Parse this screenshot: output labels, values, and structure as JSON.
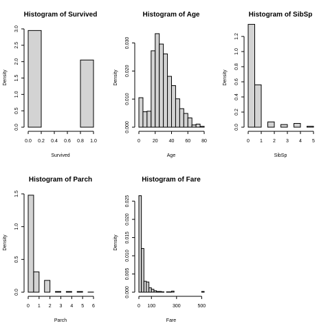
{
  "chart_data": [
    {
      "type": "bar",
      "title": "Histogram of Survived",
      "xlabel": "Survived",
      "ylabel": "Density",
      "bin_edges": [
        0,
        0.2,
        0.4,
        0.6,
        0.8,
        1.0
      ],
      "values": [
        2.95,
        0,
        0,
        0,
        2.05
      ],
      "xlim": [
        0,
        1.0
      ],
      "ylim": [
        0,
        3.0
      ],
      "xticks": [
        0,
        0.2,
        0.4,
        0.6,
        0.8,
        1.0
      ],
      "xtick_labels": [
        "0.0",
        "0.2",
        "0.4",
        "0.6",
        "0.8",
        "1.0"
      ],
      "yticks": [
        0,
        0.5,
        1.0,
        1.5,
        2.0,
        2.5,
        3.0
      ],
      "ytick_labels": [
        "0.0",
        "0.5",
        "1.0",
        "1.5",
        "2.0",
        "2.5",
        "3.0"
      ]
    },
    {
      "type": "bar",
      "title": "Histogram of Age",
      "xlabel": "Age",
      "ylabel": "Density",
      "bin_edges": [
        0,
        5,
        10,
        15,
        20,
        25,
        30,
        35,
        40,
        45,
        50,
        55,
        60,
        65,
        70,
        75,
        80
      ],
      "values": [
        0.0105,
        0.0055,
        0.0057,
        0.0272,
        0.0333,
        0.0296,
        0.0261,
        0.0181,
        0.0148,
        0.0101,
        0.0066,
        0.0049,
        0.0033,
        0.0008,
        0.0011,
        0.0003
      ],
      "xlim": [
        0,
        80
      ],
      "ylim": [
        0,
        0.035
      ],
      "xticks": [
        0,
        20,
        40,
        60,
        80
      ],
      "xtick_labels": [
        "0",
        "20",
        "40",
        "60",
        "80"
      ],
      "yticks": [
        0,
        0.01,
        0.02,
        0.03
      ],
      "ytick_labels": [
        "0.000",
        "0.010",
        "0.020",
        "0.030"
      ]
    },
    {
      "type": "bar",
      "title": "Histogram of SibSp",
      "xlabel": "SibSp",
      "ylabel": "Density",
      "bin_edges": [
        0,
        0.5,
        1,
        1.5,
        2,
        2.5,
        3,
        3.5,
        4,
        4.5,
        5
      ],
      "values": [
        1.36,
        0.56,
        0,
        0.07,
        0,
        0.035,
        0,
        0.05,
        0,
        0.012
      ],
      "xlim": [
        0,
        5
      ],
      "ylim": [
        0,
        1.3
      ],
      "xticks": [
        0,
        1,
        2,
        3,
        4,
        5
      ],
      "xtick_labels": [
        "0",
        "1",
        "2",
        "3",
        "4",
        "5"
      ],
      "yticks": [
        0,
        0.2,
        0.4,
        0.6,
        0.8,
        1.0,
        1.2
      ],
      "ytick_labels": [
        "0.0",
        "0.2",
        "0.4",
        "0.6",
        "0.8",
        "1.0",
        "1.2"
      ]
    },
    {
      "type": "bar",
      "title": "Histogram of Parch",
      "xlabel": "Parch",
      "ylabel": "Density",
      "bin_edges": [
        0,
        0.5,
        1,
        1.5,
        2,
        2.5,
        3,
        3.5,
        4,
        4.5,
        5,
        5.5,
        6
      ],
      "values": [
        1.48,
        0.31,
        0,
        0.18,
        0,
        0.01,
        0,
        0.01,
        0,
        0.01,
        0,
        0.002
      ],
      "xlim": [
        0,
        6
      ],
      "ylim": [
        0,
        1.5
      ],
      "xticks": [
        0,
        1,
        2,
        3,
        4,
        5,
        6
      ],
      "xtick_labels": [
        "0",
        "1",
        "2",
        "3",
        "4",
        "5",
        "6"
      ],
      "yticks": [
        0,
        0.5,
        1.0,
        1.5
      ],
      "ytick_labels": [
        "0.0",
        "0.5",
        "1.0",
        "1.5"
      ]
    },
    {
      "type": "bar",
      "title": "Histogram of Fare",
      "xlabel": "Fare",
      "ylabel": "Density",
      "bin_edges": [
        0,
        20,
        40,
        60,
        80,
        100,
        120,
        140,
        160,
        180,
        200,
        220,
        240,
        260,
        280,
        300,
        320,
        340,
        360,
        380,
        400,
        420,
        440,
        460,
        480,
        500,
        520
      ],
      "values": [
        0.0265,
        0.012,
        0.003,
        0.0028,
        0.0012,
        0.0008,
        0.0004,
        0.0002,
        0.0002,
        0.0001,
        0,
        0.0001,
        0.0001,
        0.0003,
        0,
        0,
        0,
        0,
        0,
        0,
        0,
        0,
        0,
        0,
        0,
        0.0002
      ],
      "xlim": [
        0,
        520
      ],
      "ylim": [
        0,
        0.027
      ],
      "xticks": [
        0,
        100,
        300,
        500
      ],
      "xtick_labels": [
        "0",
        "100",
        "300",
        "500"
      ],
      "yticks": [
        0,
        0.005,
        0.01,
        0.015,
        0.02,
        0.025
      ],
      "ytick_labels": [
        "0.000",
        "0.005",
        "0.010",
        "0.015",
        "0.020",
        "0.025"
      ]
    }
  ]
}
